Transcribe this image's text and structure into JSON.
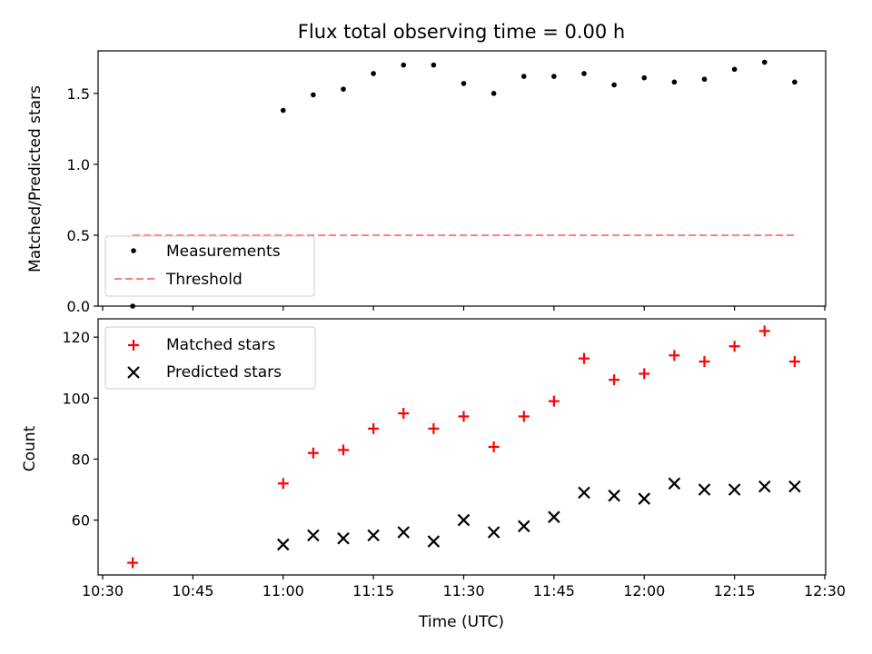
{
  "chart_data": [
    {
      "type": "scatter",
      "title": "Flux total observing time = 0.00 h",
      "xlabel": "",
      "ylabel": "Matched/Predicted stars",
      "x_ticks": [
        "10:30",
        "10:45",
        "11:00",
        "11:15",
        "11:30",
        "11:45",
        "12:00",
        "12:15",
        "12:30"
      ],
      "y_ticks": [
        "0.0",
        "0.5",
        "1.0",
        "1.5"
      ],
      "xlim": [
        "10:30",
        "12:30"
      ],
      "ylim": [
        0.0,
        1.8
      ],
      "legend": {
        "placement": "lower-left",
        "entries": [
          "Measurements",
          "Threshold"
        ]
      },
      "series": [
        {
          "name": "Measurements",
          "marker": "dot",
          "color": "#000000",
          "x": [
            "10:35",
            "11:00",
            "11:05",
            "11:10",
            "11:15",
            "11:20",
            "11:25",
            "11:30",
            "11:35",
            "11:40",
            "11:45",
            "11:50",
            "11:55",
            "12:00",
            "12:05",
            "12:10",
            "12:15",
            "12:20",
            "12:25"
          ],
          "y": [
            0.0,
            1.38,
            1.49,
            1.53,
            1.64,
            1.7,
            1.7,
            1.57,
            1.5,
            1.62,
            1.62,
            1.64,
            1.56,
            1.61,
            1.58,
            1.6,
            1.67,
            1.72,
            1.58
          ]
        },
        {
          "name": "Threshold",
          "style": "dashed-line",
          "color": "#ff7f7f",
          "x": [
            "10:35",
            "12:25"
          ],
          "y": [
            0.5,
            0.5
          ]
        }
      ],
      "grid": false
    },
    {
      "type": "scatter",
      "title": "",
      "xlabel": "Time (UTC)",
      "ylabel": "Count",
      "x_ticks": [
        "10:30",
        "10:45",
        "11:00",
        "11:15",
        "11:30",
        "11:45",
        "12:00",
        "12:15",
        "12:30"
      ],
      "y_ticks": [
        "60",
        "80",
        "100",
        "120"
      ],
      "xlim": [
        "10:30",
        "12:30"
      ],
      "ylim": [
        42,
        126
      ],
      "legend": {
        "placement": "upper-left",
        "entries": [
          "Matched stars",
          "Predicted stars"
        ]
      },
      "series": [
        {
          "name": "Matched stars",
          "marker": "plus",
          "color": "#ff0000",
          "x": [
            "10:35",
            "11:00",
            "11:05",
            "11:10",
            "11:15",
            "11:20",
            "11:25",
            "11:30",
            "11:35",
            "11:40",
            "11:45",
            "11:50",
            "11:55",
            "12:00",
            "12:05",
            "12:10",
            "12:15",
            "12:20",
            "12:25"
          ],
          "y": [
            46,
            72,
            82,
            83,
            90,
            95,
            90,
            94,
            84,
            94,
            99,
            113,
            106,
            108,
            114,
            112,
            117,
            122,
            112
          ]
        },
        {
          "name": "Predicted stars",
          "marker": "x",
          "color": "#000000",
          "x": [
            "11:00",
            "11:05",
            "11:10",
            "11:15",
            "11:20",
            "11:25",
            "11:30",
            "11:35",
            "11:40",
            "11:45",
            "11:50",
            "11:55",
            "12:00",
            "12:05",
            "12:10",
            "12:15",
            "12:20",
            "12:25"
          ],
          "y": [
            52,
            55,
            54,
            55,
            56,
            53,
            60,
            56,
            58,
            61,
            69,
            68,
            67,
            72,
            70,
            70,
            71,
            71
          ]
        }
      ],
      "grid": false
    }
  ]
}
